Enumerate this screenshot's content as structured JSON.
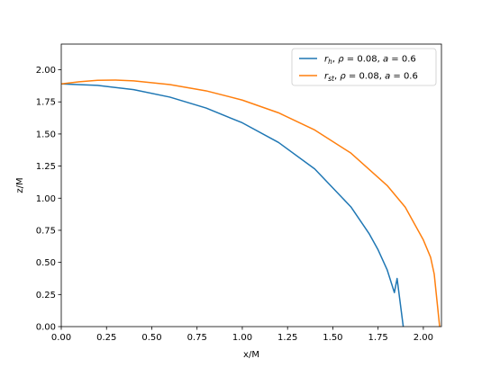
{
  "chart_data": {
    "type": "line",
    "title": "",
    "xlabel": "x/M",
    "ylabel": "z/M",
    "xlim": [
      0,
      2.1
    ],
    "ylim": [
      0,
      2.2
    ],
    "x_ticks": [
      "0.00",
      "0.25",
      "0.50",
      "0.75",
      "1.00",
      "1.25",
      "1.50",
      "1.75",
      "2.00"
    ],
    "y_ticks": [
      "0.00",
      "0.25",
      "0.50",
      "0.75",
      "1.00",
      "1.25",
      "1.50",
      "1.75",
      "2.00"
    ],
    "grid": false,
    "legend_position": "top-right",
    "series": [
      {
        "name_parts": [
          {
            "t": "r",
            "style": "italic"
          },
          {
            "t": "h",
            "style": "sub"
          },
          {
            "t": ", ",
            "style": "normal"
          },
          {
            "t": "ρ",
            "style": "italic"
          },
          {
            "t": " = 0.08, ",
            "style": "normal"
          },
          {
            "t": "a",
            "style": "italic"
          },
          {
            "t": " = 0.6",
            "style": "normal"
          }
        ],
        "color": "#1f77b4",
        "x": [
          0.0,
          0.2,
          0.4,
          0.6,
          0.8,
          1.0,
          1.2,
          1.4,
          1.6,
          1.7,
          1.75,
          1.8,
          1.84,
          1.855,
          1.889
        ],
        "y": [
          1.89,
          1.879,
          1.845,
          1.787,
          1.702,
          1.587,
          1.434,
          1.228,
          0.932,
          0.725,
          0.598,
          0.443,
          0.265,
          0.375,
          0.0
        ]
      },
      {
        "name_parts": [
          {
            "t": "r",
            "style": "italic"
          },
          {
            "t": "st",
            "style": "sub"
          },
          {
            "t": ", ",
            "style": "normal"
          },
          {
            "t": "ρ",
            "style": "italic"
          },
          {
            "t": " = 0.08, ",
            "style": "normal"
          },
          {
            "t": "a",
            "style": "italic"
          },
          {
            "t": " = 0.6",
            "style": "normal"
          }
        ],
        "color": "#ff7f0e",
        "x": [
          0.0,
          0.1,
          0.2,
          0.3,
          0.4,
          0.6,
          0.8,
          1.0,
          1.2,
          1.4,
          1.6,
          1.8,
          1.9,
          2.0,
          2.04,
          2.06,
          2.09
        ],
        "y": [
          1.89,
          1.907,
          1.918,
          1.92,
          1.914,
          1.885,
          1.836,
          1.764,
          1.665,
          1.531,
          1.351,
          1.099,
          0.93,
          0.675,
          0.54,
          0.41,
          0.0
        ]
      }
    ]
  }
}
